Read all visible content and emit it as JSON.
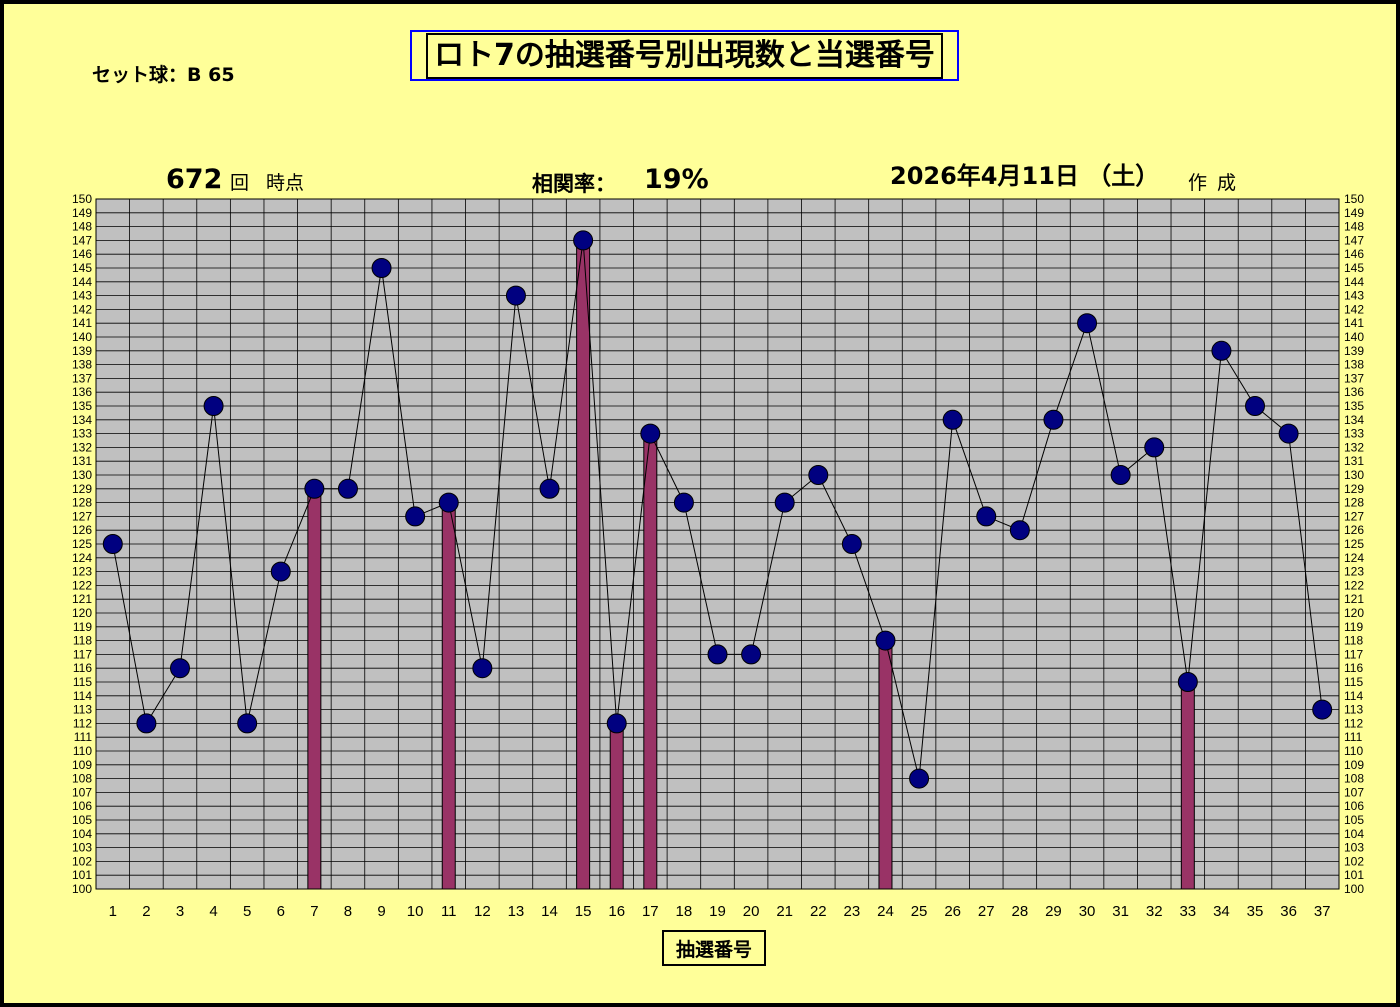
{
  "title": "ロト7の抽選番号別出現数と当選番号",
  "set_ball": "セット球：B 65",
  "draw_count": "672",
  "draw_unit": "回",
  "draw_suffix": "時点",
  "correlation_label": "相関率：",
  "correlation_value": "19%",
  "date": "2026年4月11日 （土）",
  "made": "作成",
  "colors": {
    "background": "#FFFF99",
    "plot_area": "#C0C0C0",
    "bar": "#993366",
    "marker": "#000080",
    "title_border": "#0000FF"
  },
  "chart_data": {
    "type": "bar+line",
    "x": [
      1,
      2,
      3,
      4,
      5,
      6,
      7,
      8,
      9,
      10,
      11,
      12,
      13,
      14,
      15,
      16,
      17,
      18,
      19,
      20,
      21,
      22,
      23,
      24,
      25,
      26,
      27,
      28,
      29,
      30,
      31,
      32,
      33,
      34,
      35,
      36,
      37
    ],
    "counts": [
      125,
      112,
      116,
      135,
      112,
      123,
      129,
      129,
      145,
      127,
      128,
      116,
      143,
      129,
      147,
      112,
      133,
      128,
      117,
      117,
      128,
      130,
      125,
      118,
      108,
      134,
      127,
      126,
      134,
      141,
      130,
      132,
      115,
      139,
      135,
      133,
      113
    ],
    "winning_numbers": [
      7,
      11,
      15,
      16,
      17,
      24,
      33
    ],
    "xlabel": "抽選番号",
    "ylim": [
      100,
      150
    ],
    "ytick_step": 1,
    "grid": true,
    "legend": "none"
  }
}
